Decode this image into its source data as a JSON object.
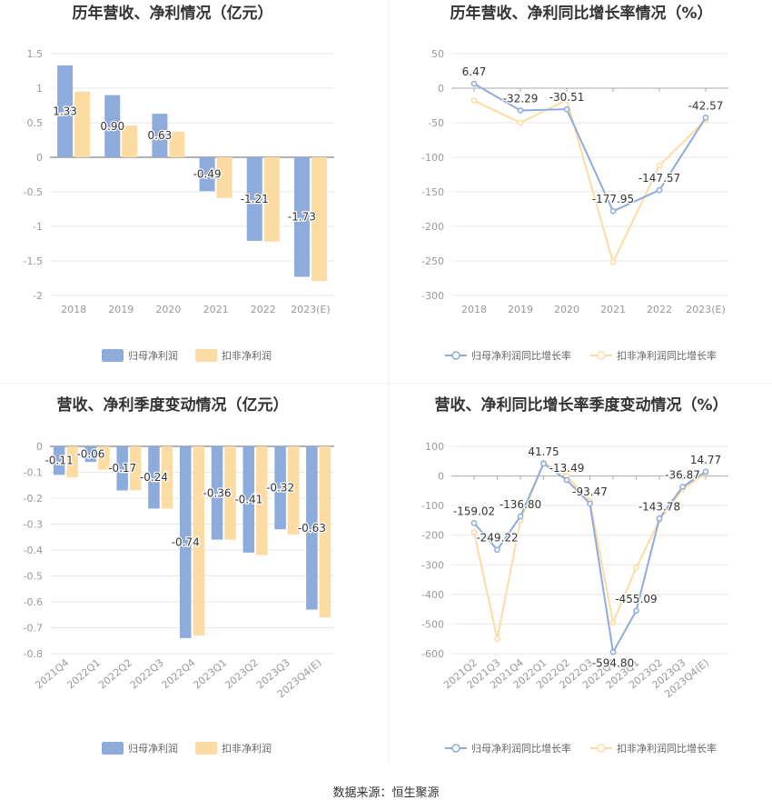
{
  "source": "数据来源：恒生聚源",
  "colors": {
    "series1": "#8eacdb",
    "series2": "#fddca3",
    "grid": "#e8e8e8",
    "axis": "#999999"
  },
  "chart_data": [
    {
      "type": "bar",
      "title": "历年营收、净利情况（亿元）",
      "categories": [
        "2018",
        "2019",
        "2020",
        "2021",
        "2022",
        "2023(E)"
      ],
      "ylim": [
        -2,
        1.5
      ],
      "yticks": [
        "1.5",
        "1",
        "0.5",
        "0",
        "-0.5",
        "-1",
        "-1.5",
        "-2"
      ],
      "ytick_values": [
        1.5,
        1,
        0.5,
        0,
        -0.5,
        -1,
        -1.5,
        -2
      ],
      "series": [
        {
          "name": "归母净利润",
          "values": [
            1.33,
            0.9,
            0.63,
            -0.49,
            -1.21,
            -1.73
          ],
          "labels": [
            "1.33",
            "0.90",
            "0.63",
            "-0.49",
            "-1.21",
            "-1.73"
          ]
        },
        {
          "name": "扣非净利润",
          "values": [
            0.95,
            0.46,
            0.37,
            -0.59,
            -1.22,
            -1.79
          ]
        }
      ],
      "legend": "bottom"
    },
    {
      "type": "line",
      "title": "历年营收、净利同比增长率情况（%）",
      "categories": [
        "2018",
        "2019",
        "2020",
        "2021",
        "2022",
        "2023(E)"
      ],
      "ylim": [
        -300,
        50
      ],
      "yticks": [
        "50",
        "0",
        "-50",
        "-100",
        "-150",
        "-200",
        "-250",
        "-300"
      ],
      "ytick_values": [
        50,
        0,
        -50,
        -100,
        -150,
        -200,
        -250,
        -300
      ],
      "series": [
        {
          "name": "归母净利润同比增长率",
          "values": [
            6.47,
            -32.29,
            -30.51,
            -177.95,
            -147.57,
            -42.57
          ],
          "labels": [
            "6.47",
            "-32.29",
            "-30.51",
            "-177.95",
            "-147.57",
            "-42.57"
          ]
        },
        {
          "name": "扣非净利润同比增长率",
          "values": [
            -18,
            -50,
            -17,
            -252,
            -112,
            -46
          ]
        }
      ],
      "legend": "bottom"
    },
    {
      "type": "bar",
      "title": "营收、净利季度变动情况（亿元）",
      "categories": [
        "2021Q4",
        "2022Q1",
        "2022Q2",
        "2022Q3",
        "2022Q4",
        "2023Q1",
        "2023Q2",
        "2023Q3",
        "2023Q4(E)"
      ],
      "ylim": [
        -0.8,
        0
      ],
      "yticks": [
        "0",
        "-0.1",
        "-0.2",
        "-0.3",
        "-0.4",
        "-0.5",
        "-0.6",
        "-0.7",
        "-0.8"
      ],
      "ytick_values": [
        0,
        -0.1,
        -0.2,
        -0.3,
        -0.4,
        -0.5,
        -0.6,
        -0.7,
        -0.8
      ],
      "series": [
        {
          "name": "归母净利润",
          "values": [
            -0.11,
            -0.06,
            -0.17,
            -0.24,
            -0.74,
            -0.36,
            -0.41,
            -0.32,
            -0.63
          ],
          "labels": [
            "-0.11",
            "-0.06",
            "-0.17",
            "-0.24",
            "-0.74",
            "-0.36",
            "-0.41",
            "-0.32",
            "-0.63"
          ]
        },
        {
          "name": "扣非净利润",
          "values": [
            -0.12,
            -0.09,
            -0.17,
            -0.24,
            -0.73,
            -0.36,
            -0.42,
            -0.34,
            -0.66
          ]
        }
      ],
      "legend": "bottom"
    },
    {
      "type": "line",
      "title": "营收、净利同比增长率季度变动情况（%）",
      "categories": [
        "2021Q2",
        "2021Q3",
        "2021Q4",
        "2022Q1",
        "2022Q2",
        "2022Q3",
        "2022Q4",
        "2023Q1",
        "2023Q2",
        "2023Q3",
        "2023Q4(E)"
      ],
      "ylim": [
        -600,
        100
      ],
      "yticks": [
        "100",
        "0",
        "-100",
        "-200",
        "-300",
        "-400",
        "-500",
        "-600"
      ],
      "ytick_values": [
        100,
        0,
        -100,
        -200,
        -300,
        -400,
        -500,
        -600
      ],
      "series": [
        {
          "name": "归母净利润同比增长率",
          "values": [
            -159.02,
            -249.22,
            -136.8,
            41.75,
            -13.49,
            -93.47,
            -594.8,
            -455.09,
            -143.78,
            -36.87,
            14.77
          ],
          "labels": [
            "-159.02",
            "-249.22",
            "-136.80",
            "41.75",
            "-13.49",
            "-93.47",
            "-594.80",
            "-455.09",
            "-143.78",
            "-36.87",
            "14.77"
          ]
        },
        {
          "name": "扣非净利润同比增长率",
          "values": [
            -190,
            -550,
            -150,
            45,
            0,
            -85,
            -495,
            -310,
            -150,
            -45,
            10
          ]
        }
      ],
      "legend": "bottom"
    }
  ]
}
